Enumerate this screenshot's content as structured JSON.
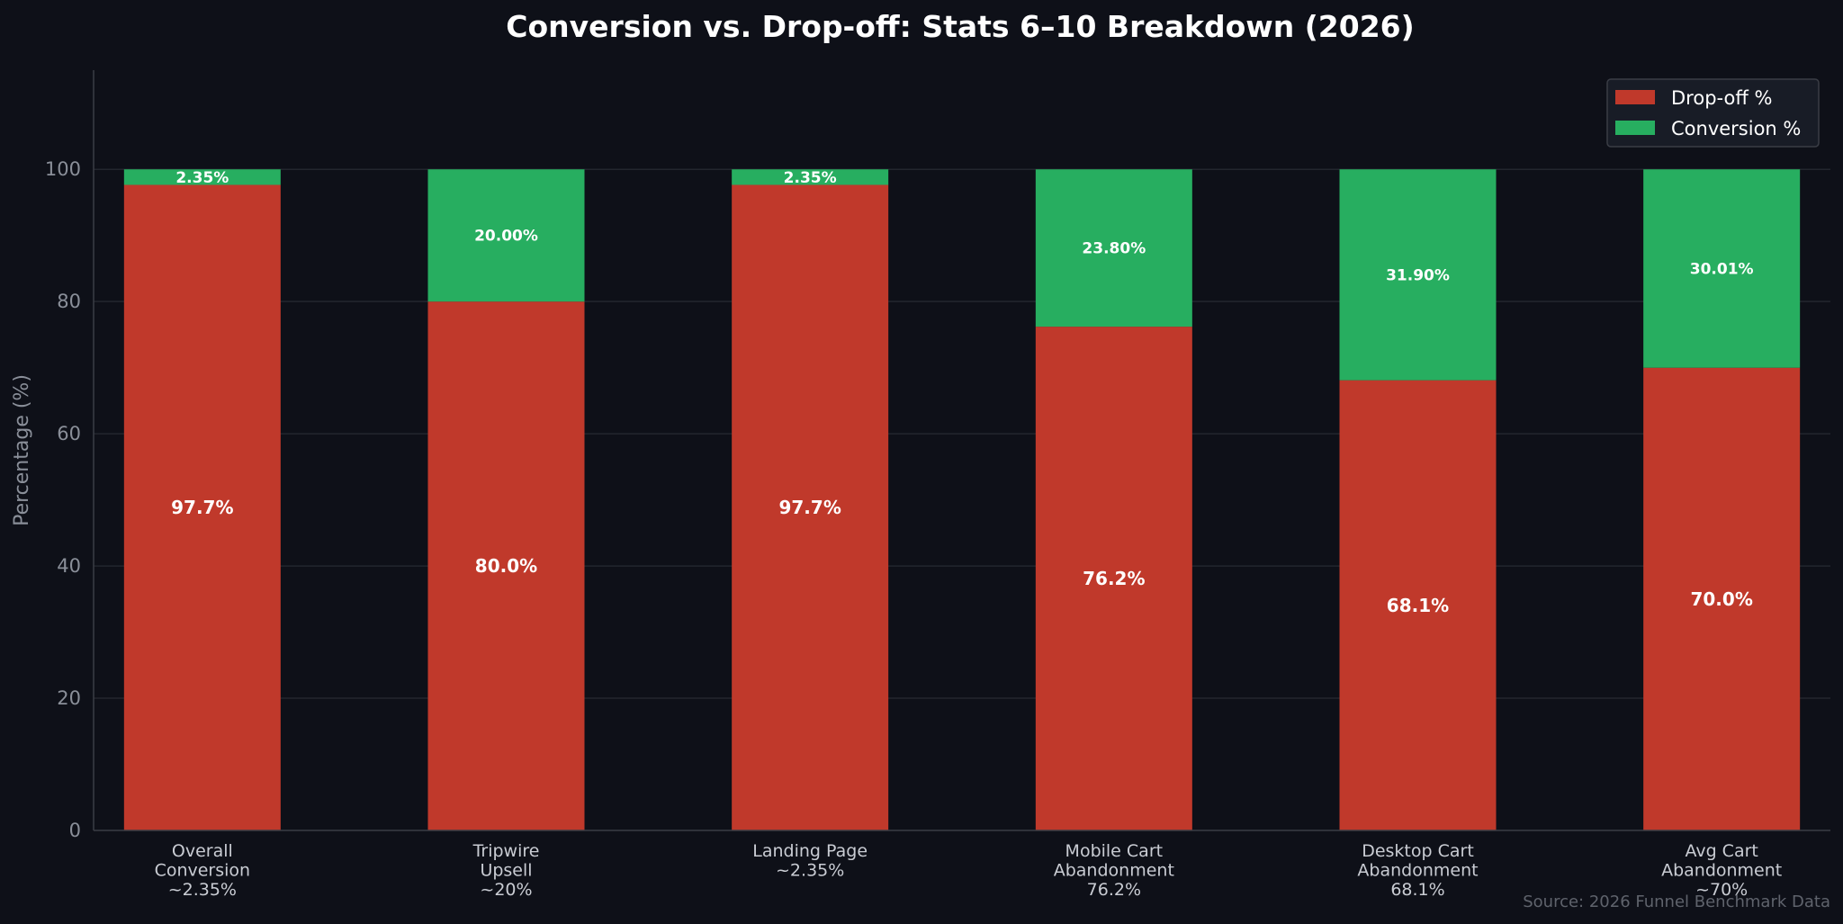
{
  "chart_data": {
    "type": "bar",
    "stacked": true,
    "title": "Conversion vs. Drop-off: Stats 6–10 Breakdown (2026)",
    "xlabel": "",
    "ylabel": "Percentage (%)",
    "ylim": [
      0,
      115
    ],
    "yticks": [
      0,
      20,
      40,
      60,
      80,
      100
    ],
    "grid": "y",
    "legend_position": "top-right",
    "categories": [
      [
        "Overall",
        "Conversion",
        "~2.35%"
      ],
      [
        "Tripwire",
        "Upsell",
        "~20%"
      ],
      [
        "Landing Page",
        "~2.35%"
      ],
      [
        "Mobile Cart",
        "Abandonment",
        "76.2%"
      ],
      [
        "Desktop Cart",
        "Abandonment",
        "68.1%"
      ],
      [
        "Avg Cart",
        "Abandonment",
        "~70%"
      ]
    ],
    "series": [
      {
        "name": "Drop-off %",
        "color": "#c0392b",
        "values": [
          97.65,
          80.0,
          97.65,
          76.2,
          68.1,
          69.99
        ],
        "labels": [
          "97.7%",
          "80.0%",
          "97.7%",
          "76.2%",
          "68.1%",
          "70.0%"
        ]
      },
      {
        "name": "Conversion %",
        "color": "#27ae60",
        "values": [
          2.35,
          20.0,
          2.35,
          23.8,
          31.9,
          30.01
        ],
        "labels": [
          "2.35%",
          "20.00%",
          "2.35%",
          "23.80%",
          "31.90%",
          "30.01%"
        ]
      }
    ],
    "source": "Source: 2026 Funnel Benchmark Data"
  },
  "colors": {
    "background": "#0e1018",
    "grid": "#23262e",
    "axis": "#3a3d45",
    "legend_bg": "#181c26",
    "legend_border": "#3a3d45"
  }
}
